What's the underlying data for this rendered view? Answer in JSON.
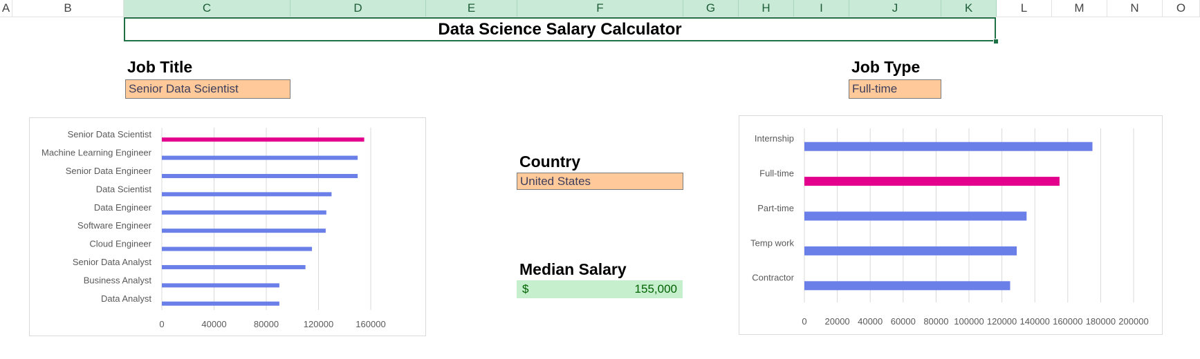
{
  "column_headers": [
    "A",
    "B",
    "C",
    "D",
    "E",
    "F",
    "G",
    "H",
    "I",
    "J",
    "K",
    "L",
    "M",
    "N",
    "O"
  ],
  "title": "Data Science Salary Calculator",
  "job_title": {
    "label": "Job Title",
    "value": "Senior Data Scientist"
  },
  "country": {
    "label": "Country",
    "value": "United States"
  },
  "median_salary": {
    "label": "Median Salary",
    "currency": "$",
    "value": "155,000"
  },
  "job_type": {
    "label": "Job Type",
    "value": "Full-time"
  },
  "colors": {
    "bar_default": "#6b7fe8",
    "bar_highlight": "#e3008c",
    "input_fill": "#ffc999",
    "result_fill": "#c6efce",
    "selected_header": "#c9ead6"
  },
  "chart_data": [
    {
      "type": "bar",
      "orientation": "horizontal",
      "categories": [
        "Senior Data Scientist",
        "Machine Learning Engineer",
        "Senior Data Engineer",
        "Data Scientist",
        "Data Engineer",
        "Software Engineer",
        "Cloud Engineer",
        "Senior Data Analyst",
        "Business Analyst",
        "Data Analyst"
      ],
      "values": [
        155000,
        150000,
        150000,
        130000,
        126000,
        125500,
        115000,
        110000,
        90000,
        90000
      ],
      "highlight": "Senior Data Scientist",
      "xlim": [
        0,
        160000
      ],
      "xticks": [
        "0",
        "40000",
        "80000",
        "120000",
        "160000"
      ],
      "grid": true
    },
    {
      "type": "bar",
      "orientation": "horizontal",
      "categories": [
        "Internship",
        "Full-time",
        "Part-time",
        "Temp work",
        "Contractor"
      ],
      "values": [
        175000,
        155000,
        135000,
        129000,
        125000
      ],
      "highlight": "Full-time",
      "xlim": [
        0,
        200000
      ],
      "xticks": [
        "0",
        "20000",
        "40000",
        "60000",
        "80000",
        "100000",
        "120000",
        "140000",
        "160000",
        "180000",
        "200000"
      ],
      "grid": true
    }
  ]
}
